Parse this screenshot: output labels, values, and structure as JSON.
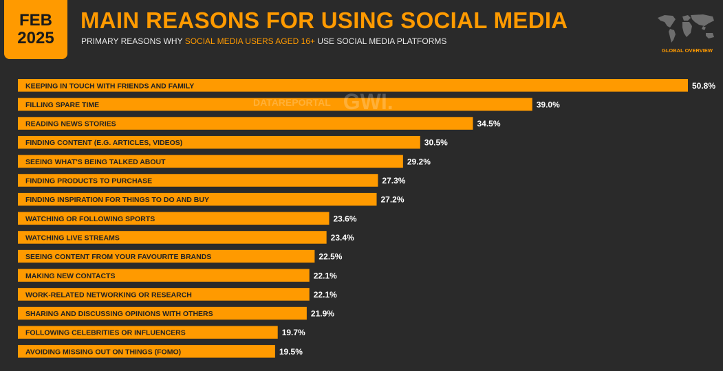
{
  "header": {
    "month": "FEB",
    "year": "2025",
    "title": "MAIN REASONS FOR USING SOCIAL MEDIA",
    "subtitle_pre": "PRIMARY REASONS WHY ",
    "subtitle_highlight": "SOCIAL MEDIA USERS AGED 16+",
    "subtitle_post": " USE SOCIAL MEDIA PLATFORMS",
    "overview_label": "GLOBAL OVERVIEW",
    "map_icon": "world-map-icon"
  },
  "watermark": {
    "left": "DATAREPORTAL",
    "right": "GWI."
  },
  "colors": {
    "background": "#2a2a2a",
    "accent": "#ff9a00",
    "text_light": "#ffffff"
  },
  "chart_data": {
    "type": "bar",
    "orientation": "horizontal",
    "title": "MAIN REASONS FOR USING SOCIAL MEDIA",
    "unit": "%",
    "categories": [
      "KEEPING IN TOUCH WITH FRIENDS AND FAMILY",
      "FILLING SPARE TIME",
      "READING NEWS STORIES",
      "FINDING CONTENT (E.G. ARTICLES, VIDEOS)",
      "SEEING WHAT'S BEING TALKED ABOUT",
      "FINDING PRODUCTS TO PURCHASE",
      "FINDING INSPIRATION FOR THINGS TO DO AND BUY",
      "WATCHING OR FOLLOWING SPORTS",
      "WATCHING LIVE STREAMS",
      "SEEING CONTENT FROM YOUR FAVOURITE BRANDS",
      "MAKING NEW CONTACTS",
      "WORK-RELATED NETWORKING OR RESEARCH",
      "SHARING AND DISCUSSING OPINIONS WITH OTHERS",
      "FOLLOWING CELEBRITIES OR INFLUENCERS",
      "AVOIDING MISSING OUT ON THINGS (FOMO)"
    ],
    "values": [
      50.8,
      39.0,
      34.5,
      30.5,
      29.2,
      27.3,
      27.2,
      23.6,
      23.4,
      22.5,
      22.1,
      22.1,
      21.9,
      19.7,
      19.5
    ],
    "value_labels": [
      "50.8%",
      "39.0%",
      "34.5%",
      "30.5%",
      "29.2%",
      "27.3%",
      "27.2%",
      "23.6%",
      "23.4%",
      "22.5%",
      "22.1%",
      "22.1%",
      "21.9%",
      "19.7%",
      "19.5%"
    ],
    "xlim": [
      0,
      50.8
    ],
    "grid": false,
    "legend": "none"
  }
}
